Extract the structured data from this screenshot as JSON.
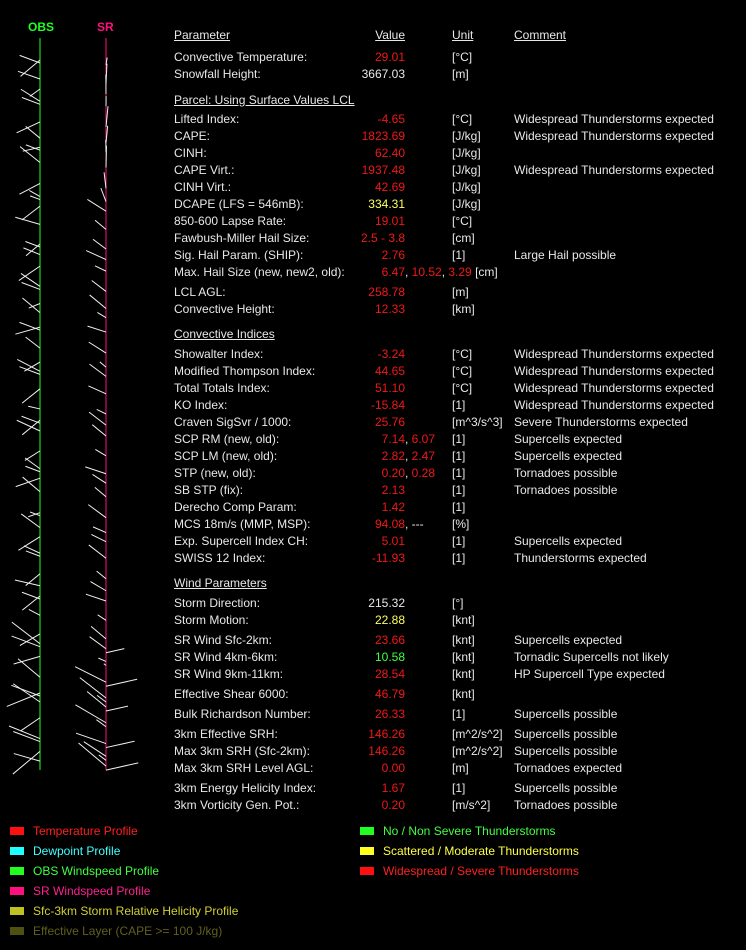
{
  "profile_labels": {
    "obs": "OBS",
    "sr": "SR"
  },
  "header": {
    "parameter": "Parameter",
    "value": "Value",
    "unit": "Unit",
    "comment": "Comment"
  },
  "value_separator": ", ",
  "sections": [
    {
      "rows": [
        {
          "label": "Convective Temperature:",
          "value": [
            "29.01"
          ],
          "colors": [
            "#f01818"
          ],
          "unit": "[°C]"
        },
        {
          "label": "Snowfall Height:",
          "value": [
            "3667.03"
          ],
          "colors": [
            "#e8e8e8"
          ],
          "unit": "[m]"
        }
      ]
    },
    {
      "title": "Parcel: Using Surface Values LCL",
      "rows": [
        {
          "label": "Lifted Index:",
          "value": [
            "-4.65"
          ],
          "colors": [
            "#f01818"
          ],
          "unit": "[°C]",
          "comment": "Widespread Thunderstorms expected"
        },
        {
          "label": "CAPE:",
          "value": [
            "1823.69"
          ],
          "colors": [
            "#f01818"
          ],
          "unit": "[J/kg]",
          "comment": "Widespread Thunderstorms expected"
        },
        {
          "label": "CINH:",
          "value": [
            "62.40"
          ],
          "colors": [
            "#f01818"
          ],
          "unit": "[J/kg]"
        },
        {
          "label": "CAPE Virt.:",
          "value": [
            "1937.48"
          ],
          "colors": [
            "#f01818"
          ],
          "unit": "[J/kg]",
          "comment": "Widespread Thunderstorms expected"
        },
        {
          "label": "CINH Virt.:",
          "value": [
            "42.69"
          ],
          "colors": [
            "#f01818"
          ],
          "unit": "[J/kg]"
        },
        {
          "label": "DCAPE (LFS = 546mB):",
          "value": [
            "334.31"
          ],
          "colors": [
            "#ffff60"
          ],
          "unit": "[J/kg]"
        },
        {
          "label": "850-600 Lapse Rate:",
          "value": [
            "19.01"
          ],
          "colors": [
            "#f01818"
          ],
          "unit": "[°C]"
        },
        {
          "label": "Fawbush-Miller Hail Size:",
          "value": [
            "2.5 - 3.8"
          ],
          "colors": [
            "#f01818"
          ],
          "unit": "[cm]"
        },
        {
          "label": "Sig. Hail Param. (SHIP):",
          "value": [
            "2.76"
          ],
          "colors": [
            "#f01818"
          ],
          "unit": "[1]",
          "comment": "Large Hail possible"
        },
        {
          "label": "Max. Hail Size (new, new2, old):",
          "value": [
            "6.47",
            "10.52",
            "3.29"
          ],
          "colors": [
            "#f01818",
            "#f01818",
            "#f01818"
          ],
          "unit": "[cm]",
          "unit_inline": true
        },
        {
          "label": "LCL AGL:",
          "value": [
            "258.78"
          ],
          "colors": [
            "#f01818"
          ],
          "unit": "[m]"
        },
        {
          "label": "Convective Height:",
          "value": [
            "12.33"
          ],
          "colors": [
            "#f01818"
          ],
          "unit": "[km]"
        }
      ]
    },
    {
      "title": "Convective Indices",
      "rows": [
        {
          "label": "Showalter Index:",
          "value": [
            "-3.24"
          ],
          "colors": [
            "#f01818"
          ],
          "unit": "[°C]",
          "comment": "Widespread Thunderstorms expected"
        },
        {
          "label": "Modified Thompson Index:",
          "value": [
            "44.65"
          ],
          "colors": [
            "#f01818"
          ],
          "unit": "[°C]",
          "comment": "Widespread Thunderstorms expected"
        },
        {
          "label": "Total Totals Index:",
          "value": [
            "51.10"
          ],
          "colors": [
            "#f01818"
          ],
          "unit": "[°C]",
          "comment": "Widespread Thunderstorms expected"
        },
        {
          "label": "KO Index:",
          "value": [
            "-15.84"
          ],
          "colors": [
            "#f01818"
          ],
          "unit": "[1]",
          "comment": "Widespread Thunderstorms expected"
        },
        {
          "label": "Craven SigSvr / 1000:",
          "value": [
            "25.76"
          ],
          "colors": [
            "#f01818"
          ],
          "unit": "[m^3/s^3]",
          "comment": "Severe Thunderstorms expected"
        },
        {
          "label": "SCP RM (new, old):",
          "value": [
            "7.14",
            "6.07"
          ],
          "colors": [
            "#f01818",
            "#f01818"
          ],
          "unit": "[1]",
          "comment": "Supercells expected"
        },
        {
          "label": "SCP LM (new, old):",
          "value": [
            "2.82",
            "2.47"
          ],
          "colors": [
            "#f01818",
            "#f01818"
          ],
          "unit": "[1]",
          "comment": "Supercells expected"
        },
        {
          "label": "STP (new, old):",
          "value": [
            "0.20",
            "0.28"
          ],
          "colors": [
            "#f01818",
            "#f01818"
          ],
          "unit": "[1]",
          "comment": "Tornadoes possible"
        },
        {
          "label": "SB STP (fix):",
          "value": [
            "2.13"
          ],
          "colors": [
            "#f01818"
          ],
          "unit": "[1]",
          "comment": "Tornadoes possible"
        },
        {
          "label": "Derecho Comp Param:",
          "value": [
            "1.42"
          ],
          "colors": [
            "#f01818"
          ],
          "unit": "[1]"
        },
        {
          "label": "MCS 18m/s (MMP, MSP):",
          "value": [
            "94.08",
            "---"
          ],
          "colors": [
            "#f01818",
            "#e8e8e8"
          ],
          "unit": "[%]"
        },
        {
          "label": "Exp. Supercell Index CH:",
          "value": [
            "5.01"
          ],
          "colors": [
            "#f01818"
          ],
          "unit": "[1]",
          "comment": "Supercells expected"
        },
        {
          "label": "SWISS 12 Index:",
          "value": [
            "-11.93"
          ],
          "colors": [
            "#f01818"
          ],
          "unit": "[1]",
          "comment": "Thunderstorms expected"
        }
      ]
    },
    {
      "title": "Wind Parameters",
      "rows": [
        {
          "label": "Storm Direction:",
          "value": [
            "215.32"
          ],
          "colors": [
            "#e8e8e8"
          ],
          "unit": "[°]"
        },
        {
          "label": "Storm Motion:",
          "value": [
            "22.88"
          ],
          "colors": [
            "#ffff60"
          ],
          "unit": "[knt]"
        },
        {
          "label": "SR Wind Sfc-2km:",
          "value": [
            "23.66"
          ],
          "colors": [
            "#f01818"
          ],
          "unit": "[knt]",
          "comment": "Supercells expected"
        },
        {
          "label": "SR Wind 4km-6km:",
          "value": [
            "10.58"
          ],
          "colors": [
            "#40ff40"
          ],
          "unit": "[knt]",
          "comment": "Tornadic Supercells not likely"
        },
        {
          "label": "SR Wind 9km-11km:",
          "value": [
            "28.54"
          ],
          "colors": [
            "#f01818"
          ],
          "unit": "[knt]",
          "comment": "HP Supercell Type expected"
        },
        {
          "label": "Effective Shear 6000:",
          "value": [
            "46.79"
          ],
          "colors": [
            "#f01818"
          ],
          "unit": "[knt]"
        },
        {
          "label": "Bulk Richardson Number:",
          "value": [
            "26.33"
          ],
          "colors": [
            "#f01818"
          ],
          "unit": "[1]",
          "comment": "Supercells possible"
        },
        {
          "label": "3km Effective SRH:",
          "value": [
            "146.26"
          ],
          "colors": [
            "#f01818"
          ],
          "unit": "[m^2/s^2]",
          "comment": "Supercells possible"
        },
        {
          "label": "Max 3km SRH (Sfc-2km):",
          "value": [
            "146.26"
          ],
          "colors": [
            "#f01818"
          ],
          "unit": "[m^2/s^2]",
          "comment": "Supercells possible"
        },
        {
          "label": "Max 3km SRH Level AGL:",
          "value": [
            "0.00"
          ],
          "colors": [
            "#f01818"
          ],
          "unit": "[m]",
          "comment": "Tornadoes expected"
        },
        {
          "label": "3km Energy Helicity Index:",
          "value": [
            "1.67"
          ],
          "colors": [
            "#f01818"
          ],
          "unit": "[1]",
          "comment": "Supercells possible"
        },
        {
          "label": "3km Vorticity Gen. Pot.:",
          "value": [
            "0.20"
          ],
          "colors": [
            "#f01818"
          ],
          "unit": "[m/s^2]",
          "comment": "Tornadoes possible"
        }
      ]
    }
  ],
  "legend": {
    "left": [
      {
        "label": "Temperature Profile",
        "color": "#ff1010",
        "text_color": "#ff2020"
      },
      {
        "label": "Dewpoint Profile",
        "color": "#20ffff",
        "text_color": "#40ffff"
      },
      {
        "label": "OBS Windspeed Profile",
        "color": "#20ff20",
        "text_color": "#40ff40"
      },
      {
        "label": "SR Windspeed Profile",
        "color": "#ff1080",
        "text_color": "#ff2090"
      },
      {
        "label": "Sfc-3km Storm Relative Helicity Profile",
        "color": "#c0c020",
        "text_color": "#d0d030"
      },
      {
        "label": "Effective Layer (CAPE >= 100 J/kg)",
        "color": "#505010",
        "text_color": "#606020"
      }
    ],
    "right": [
      {
        "label": "No / Non Severe Thunderstorms",
        "color": "#20ff20",
        "text_color": "#40ff40"
      },
      {
        "label": "Scattered / Moderate Thunderstorms",
        "color": "#ffff20",
        "text_color": "#ffff40"
      },
      {
        "label": "Widespread / Severe Thunderstorms",
        "color": "#ff1010",
        "text_color": "#ff2020"
      }
    ]
  }
}
